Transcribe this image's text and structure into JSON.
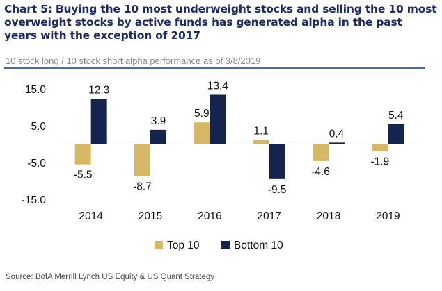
{
  "title": "Chart 5: Buying the 10 most underweight stocks and selling the 10 most overweight stocks by active funds has generated alpha in the past years with the exception of 2017",
  "subtitle": "10 stock long / 10 stock short alpha performance as of 3/8/2019",
  "source": "Source:  BofA Merrill Lynch US Equity & US Quant Strategy",
  "colors": {
    "top10": "#d6b864",
    "bottom10": "#14244f",
    "rule": "#4a6aa0",
    "title": "#1a2a6a"
  },
  "chart_data": {
    "type": "bar",
    "categories": [
      "2014",
      "2015",
      "2016",
      "2017",
      "2018",
      "2019"
    ],
    "series": [
      {
        "name": "Top 10",
        "values": [
          -5.5,
          -8.7,
          5.9,
          1.1,
          -4.6,
          -1.9
        ],
        "labels": [
          "-5.5",
          "-8.7",
          "5.9",
          "1.1",
          "-4.6",
          "-1.9"
        ]
      },
      {
        "name": "Bottom 10",
        "values": [
          12.3,
          3.9,
          13.4,
          -9.5,
          0.4,
          5.4
        ],
        "labels": [
          "12.3",
          "3.9",
          "13.4",
          "-9.5",
          "0.4",
          "5.4"
        ]
      }
    ],
    "ylim": [
      -15,
      15
    ],
    "yticks": [
      15,
      5,
      -5,
      -15
    ],
    "ytick_labels": [
      "15.0",
      "5.0",
      "-5.0",
      "-15.0"
    ],
    "legend": "bottom-center",
    "grid": false
  }
}
